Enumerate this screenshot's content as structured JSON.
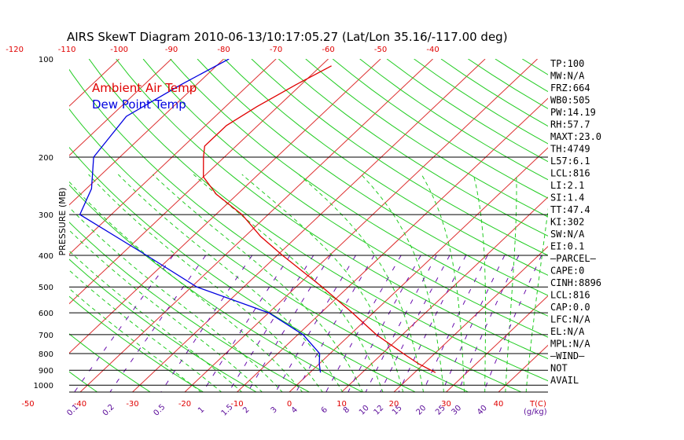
{
  "chart_data": {
    "type": "skewt",
    "title": "AIRS SkewT Diagram 2010-06-13/10:17:05.27 (Lat/Lon 35.16/-117.00 deg)",
    "legend": [
      {
        "label": "Ambient Air Temp",
        "color": "#e00000"
      },
      {
        "label": "Dew Point Temp",
        "color": "#0000e0"
      }
    ],
    "ylabel": "PRESSURE (MB)",
    "xlabel": "T(C)",
    "mixing_label": "(g/kg)",
    "pressure_ticks": [
      100,
      200,
      300,
      400,
      500,
      600,
      700,
      800,
      900,
      1000
    ],
    "temp_top_ticks": [
      -120,
      -110,
      -100,
      -90,
      -80,
      -70,
      -60,
      -50,
      -40
    ],
    "temp_bottom_ticks": [
      -50,
      -40,
      -30,
      -20,
      -10,
      0,
      10,
      20,
      30,
      40
    ],
    "mixing_ratio_ticks": [
      "0.1",
      "0.2",
      "0.5",
      "1",
      "1.5",
      "2",
      "3",
      "4",
      "6",
      "8",
      "10",
      "12",
      "15",
      "20",
      "25",
      "30",
      "40"
    ],
    "temperature_profile": [
      {
        "p": 105,
        "t": -58
      },
      {
        "p": 120,
        "t": -61
      },
      {
        "p": 140,
        "t": -64
      },
      {
        "p": 160,
        "t": -66
      },
      {
        "p": 185,
        "t": -66
      },
      {
        "p": 200,
        "t": -64
      },
      {
        "p": 230,
        "t": -60
      },
      {
        "p": 260,
        "t": -54
      },
      {
        "p": 300,
        "t": -45
      },
      {
        "p": 350,
        "t": -37
      },
      {
        "p": 400,
        "t": -29
      },
      {
        "p": 500,
        "t": -15
      },
      {
        "p": 600,
        "t": -4
      },
      {
        "p": 700,
        "t": 5
      },
      {
        "p": 800,
        "t": 14
      },
      {
        "p": 860,
        "t": 19
      },
      {
        "p": 915,
        "t": 24
      }
    ],
    "dewpoint_profile": [
      {
        "p": 100,
        "t": -79
      },
      {
        "p": 120,
        "t": -83
      },
      {
        "p": 150,
        "t": -87
      },
      {
        "p": 200,
        "t": -85
      },
      {
        "p": 250,
        "t": -79
      },
      {
        "p": 300,
        "t": -76
      },
      {
        "p": 400,
        "t": -55
      },
      {
        "p": 500,
        "t": -39
      },
      {
        "p": 600,
        "t": -20
      },
      {
        "p": 700,
        "t": -9
      },
      {
        "p": 800,
        "t": -2
      },
      {
        "p": 860,
        "t": 0
      },
      {
        "p": 915,
        "t": 2
      }
    ],
    "color_temp_lines": "#dd3030",
    "color_dry_adiabats": "#22cc22",
    "color_moist_adiabats": "#22cc22",
    "color_mixing_lines": "#6a0dad"
  },
  "indices": [
    "TP:100",
    "MW:N/A",
    "FRZ:664",
    "WB0:505",
    "PW:14.19",
    "RH:57.7",
    "MAXT:23.0",
    "TH:4749",
    "L57:6.1",
    "LCL:816",
    "LI:2.1",
    "SI:1.4",
    "TT:47.4",
    "KI:302",
    "SW:N/A",
    "EI:0.1",
    "–PARCEL–",
    "CAPE:0",
    "CINH:8896",
    "LCL:816",
    "CAP:0.0",
    "LFC:N/A",
    "EL:N/A",
    "MPL:N/A",
    "–WIND–",
    " NOT",
    "AVAIL"
  ]
}
